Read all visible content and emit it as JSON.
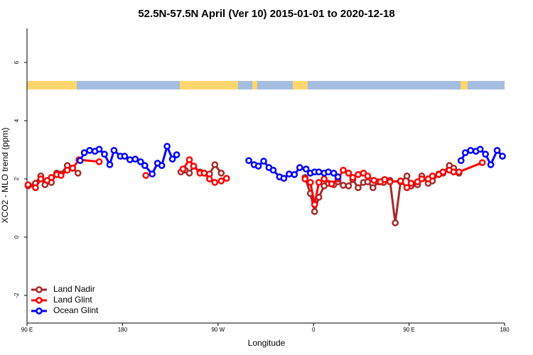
{
  "chart_data": {
    "type": "line",
    "title": "52.5N-57.5N April (Ver 10)   2015-01-01 to 2020-12-18",
    "xlabel": "Longitude",
    "ylabel": "XCO2 - MLO trend (ppm)",
    "xlim": [
      90,
      540
    ],
    "ylim": [
      -2.95,
      7.17
    ],
    "xticks": [
      {
        "value": 90,
        "label": "90 E"
      },
      180,
      {
        "value": 270,
        "label": "90 W"
      },
      {
        "value": 360,
        "label": "0"
      },
      {
        "value": 450,
        "label": "90 E"
      },
      {
        "value": 540,
        "label": "180"
      }
    ],
    "yticks": [
      -2,
      0,
      2,
      4,
      6
    ],
    "legend": "bottom-left",
    "series": [
      {
        "name": "Land Nadir",
        "color": "#a52a2a",
        "x": [
          91,
          98,
          103,
          107,
          113,
          118,
          122,
          128,
          133,
          138,
          190,
          235,
          239,
          243,
          247,
          253,
          257,
          262,
          267,
          273,
          310,
          352,
          357,
          361,
          365,
          370,
          374,
          379,
          383,
          388,
          393,
          397,
          402,
          407,
          411,
          416,
          421,
          426,
          432,
          437,
          442,
          448,
          452,
          458,
          462,
          468,
          472,
          478,
          482,
          488,
          492,
          497
        ],
        "values": [
          1.76,
          1.85,
          2.1,
          1.8,
          1.88,
          2.2,
          2.17,
          2.46,
          2.37,
          2.2,
          null,
          2.24,
          2.3,
          2.2,
          2.44,
          2.24,
          2.2,
          2.17,
          2.49,
          2.2,
          null,
          2.05,
          1.5,
          0.88,
          1.37,
          1.76,
          1.85,
          1.8,
          1.9,
          1.78,
          1.76,
          1.98,
          1.7,
          1.88,
          1.9,
          1.7,
          1.9,
          1.88,
          1.95,
          0.49,
          1.9,
          2.1,
          1.76,
          1.8,
          2.1,
          1.85,
          1.93,
          2.17,
          2.2,
          2.46,
          2.37,
          2.2
        ]
      },
      {
        "name": "Land Glint",
        "color": "#ff0000",
        "x": [
          91,
          98,
          103,
          109,
          113,
          118,
          122,
          128,
          133,
          139,
          158,
          180,
          202,
          220,
          237,
          243,
          247,
          253,
          257,
          262,
          267,
          273,
          278,
          310,
          352,
          357,
          361,
          365,
          370,
          377,
          383,
          388,
          393,
          397,
          402,
          407,
          411,
          417,
          423,
          427,
          432,
          442,
          448,
          452,
          458,
          462,
          468,
          472,
          478,
          482,
          488,
          492,
          497,
          519
        ],
        "values": [
          1.8,
          1.7,
          2.0,
          1.95,
          2.05,
          2.15,
          2.12,
          2.3,
          2.37,
          2.66,
          2.59,
          null,
          2.12,
          null,
          2.34,
          2.66,
          2.44,
          2.2,
          2.2,
          2.0,
          1.88,
          1.93,
          2.02,
          null,
          2.0,
          1.88,
          1.12,
          1.88,
          2.0,
          1.83,
          2.0,
          2.3,
          2.2,
          2.05,
          2.15,
          2.2,
          2.1,
          1.95,
          1.9,
          1.98,
          1.9,
          1.93,
          1.7,
          1.85,
          1.9,
          2.0,
          2.0,
          2.1,
          2.15,
          2.24,
          2.3,
          2.24,
          2.24,
          2.56
        ]
      },
      {
        "name": "Ocean Glint",
        "color": "#0000ff",
        "x": [
          140,
          144,
          149,
          154,
          158,
          163,
          168,
          172,
          178,
          182,
          187,
          192,
          197,
          201,
          208,
          213,
          217,
          222,
          227,
          231,
          265,
          299,
          304,
          308,
          313,
          318,
          322,
          328,
          332,
          337,
          342,
          347,
          353,
          357,
          361,
          365,
          370,
          374,
          379,
          383,
          440,
          499,
          503,
          508,
          513,
          517,
          522,
          527,
          533,
          538
        ],
        "values": [
          2.63,
          2.9,
          2.98,
          2.95,
          3.02,
          2.85,
          2.49,
          2.98,
          2.78,
          2.78,
          2.66,
          2.68,
          2.59,
          2.46,
          2.17,
          2.54,
          2.46,
          3.12,
          2.68,
          2.83,
          null,
          2.63,
          2.49,
          2.44,
          2.61,
          2.39,
          2.3,
          2.07,
          2.02,
          2.17,
          2.15,
          2.39,
          2.34,
          2.2,
          2.24,
          2.24,
          2.2,
          2.24,
          2.2,
          2.07,
          null,
          2.63,
          2.9,
          2.98,
          2.95,
          3.02,
          2.85,
          2.49,
          2.98,
          2.78
        ]
      }
    ]
  }
}
